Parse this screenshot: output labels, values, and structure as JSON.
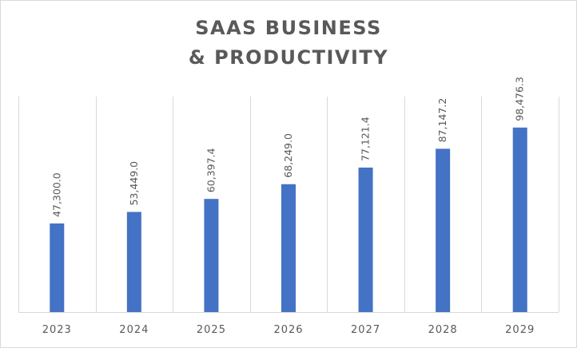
{
  "chart_data": {
    "type": "bar",
    "title_lines": [
      "SAAS BUSINESS",
      "& PRODUCTIVITY"
    ],
    "categories": [
      "2023",
      "2024",
      "2025",
      "2026",
      "2027",
      "2028",
      "2029"
    ],
    "values": [
      47300.0,
      53449.0,
      60397.4,
      68249.0,
      77121.4,
      87147.2,
      98476.3
    ],
    "data_labels": [
      "47,300.0",
      "53,449.0",
      "60,397.4",
      "68,249.0",
      "77,121.4",
      "87,147.2",
      "98,476.3"
    ],
    "xlabel": "",
    "ylabel": "",
    "ylim": [
      0,
      115000
    ],
    "grid": "vertical",
    "legend": "none",
    "bar_color": "#4472C4",
    "grid_color": "#d9d9d9"
  }
}
